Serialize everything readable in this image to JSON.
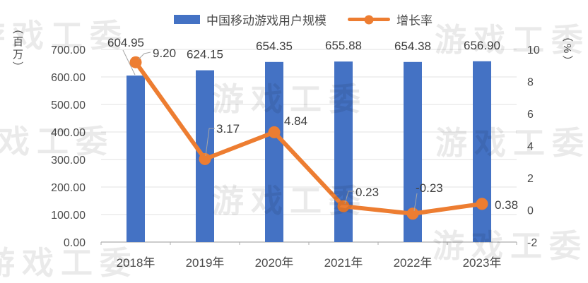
{
  "legend": [
    {
      "label": "中国移动游戏用户规模",
      "type": "bar"
    },
    {
      "label": "增长率",
      "type": "line"
    }
  ],
  "axis": {
    "left_unit": "（百万）",
    "right_unit": "（%）",
    "left_ticks": [
      "0.00",
      "100.00",
      "200.00",
      "300.00",
      "400.00",
      "500.00",
      "600.00",
      "700.00"
    ],
    "right_ticks": [
      "-2",
      "0",
      "2",
      "4",
      "6",
      "8",
      "10"
    ]
  },
  "watermark": {
    "text": "游戏工委"
  },
  "colors": {
    "bar": "#4472C4",
    "line": "#ED7D31",
    "value_label": "#404040",
    "tick_label": "#4a4a4a",
    "grid": "#E2E2E2",
    "axis_line": "#ADADAD",
    "leader": "#A6A6A6"
  },
  "chart_data": {
    "type": "bar",
    "subtype": "combo-bar-line",
    "categories": [
      "2018年",
      "2019年",
      "2020年",
      "2021年",
      "2022年",
      "2023年"
    ],
    "series": [
      {
        "name": "中国移动游戏用户规模",
        "type": "bar",
        "axis": "left",
        "values": [
          604.95,
          624.15,
          654.35,
          655.88,
          654.38,
          656.9
        ],
        "data_labels": [
          "604.95",
          "624.15",
          "654.35",
          "655.88",
          "654.38",
          "656.90"
        ]
      },
      {
        "name": "增长率",
        "type": "line",
        "axis": "right",
        "values": [
          9.2,
          3.17,
          4.84,
          0.23,
          -0.23,
          0.38
        ],
        "data_labels": [
          "9.20",
          "3.17",
          "4.84",
          "0.23",
          "-0.23",
          "0.38"
        ]
      }
    ],
    "title": "",
    "xlabel": "",
    "left_axis": {
      "label": "百万",
      "min": 0,
      "max": 700,
      "step": 100
    },
    "right_axis": {
      "label": "%",
      "min": -2,
      "max": 10,
      "step": 2
    },
    "grid": "horizontal",
    "legend_position": "top"
  }
}
